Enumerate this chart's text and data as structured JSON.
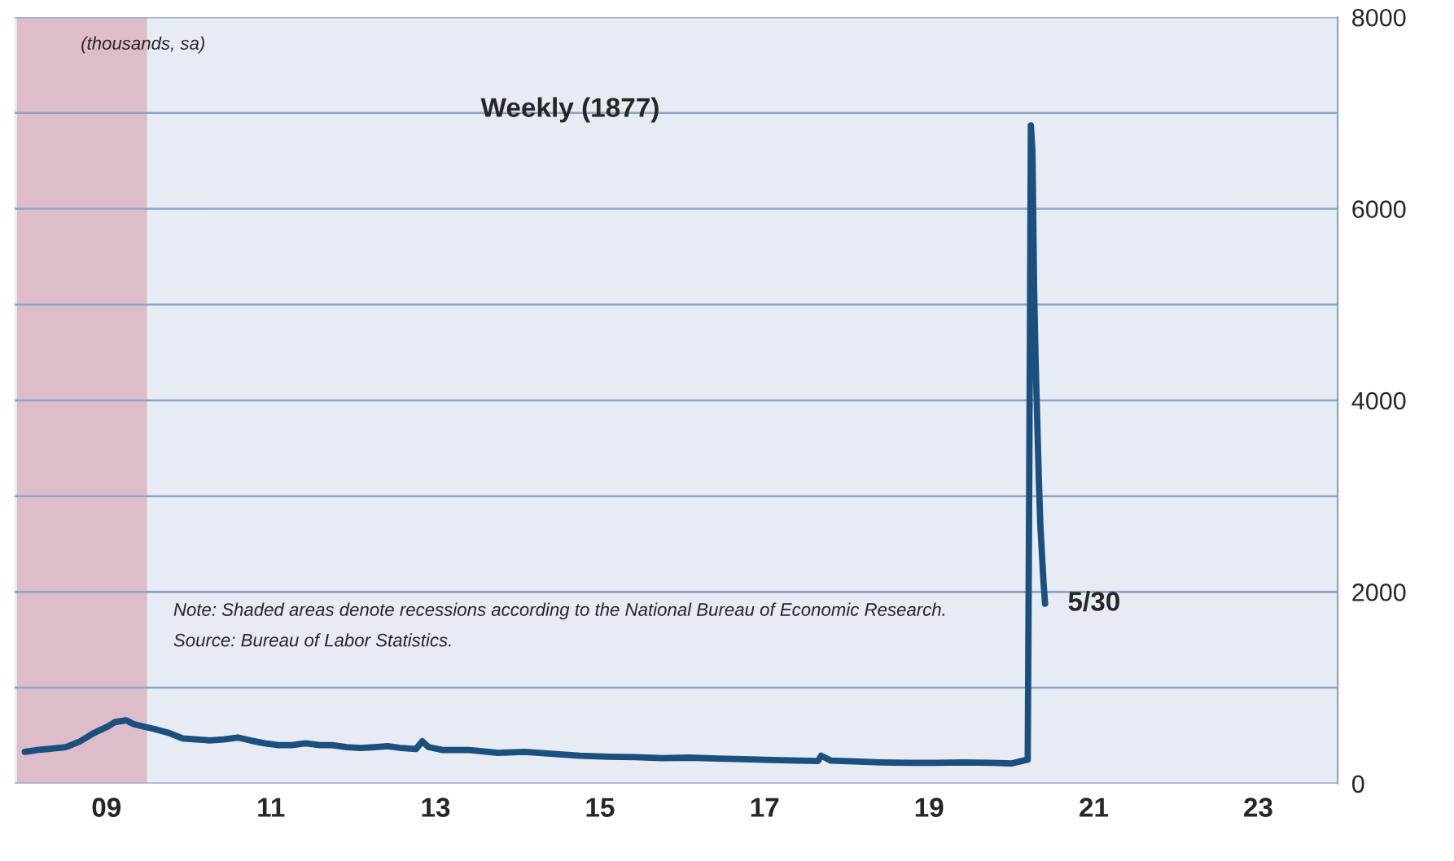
{
  "chart_data": {
    "type": "line",
    "title": "Weekly (1877)",
    "ylabel": "(thousands, sa)",
    "annotations": [
      "Note: Shaded areas denote recessions according to the National Bureau of Economic Research.",
      "Source: Bureau of Labor Statistics.",
      {
        "text": "5/30",
        "x": "2020-05-30",
        "y": 1877
      }
    ],
    "x": [
      "2008-01-05",
      "2008-03-01",
      "2008-05-03",
      "2008-07-05",
      "2008-09-06",
      "2008-10-04",
      "2008-11-01",
      "2008-12-06",
      "2009-01-03",
      "2009-02-07",
      "2009-03-28",
      "2009-05-02",
      "2009-06-06",
      "2009-08-01",
      "2009-10-03",
      "2009-12-05",
      "2010-02-06",
      "2010-04-03",
      "2010-06-05",
      "2010-08-07",
      "2010-10-02",
      "2010-12-04",
      "2011-02-05",
      "2011-04-02",
      "2011-06-04",
      "2011-08-06",
      "2011-10-01",
      "2011-12-03",
      "2012-02-04",
      "2012-04-07",
      "2012-06-02",
      "2012-08-04",
      "2012-10-06",
      "2012-11-03",
      "2012-12-01",
      "2013-02-02",
      "2013-06-01",
      "2013-10-05",
      "2014-02-01",
      "2014-06-07",
      "2014-10-04",
      "2015-02-07",
      "2015-06-06",
      "2015-10-03",
      "2016-02-06",
      "2016-06-04",
      "2016-10-01",
      "2017-02-04",
      "2017-06-03",
      "2017-08-26",
      "2017-09-09",
      "2017-10-21",
      "2018-02-03",
      "2018-06-02",
      "2018-10-06",
      "2019-02-02",
      "2019-06-01",
      "2019-10-05",
      "2020-01-04",
      "2020-03-14",
      "2020-03-21",
      "2020-03-28",
      "2020-04-04",
      "2020-04-11",
      "2020-04-18",
      "2020-04-25",
      "2020-05-02",
      "2020-05-09",
      "2020-05-16",
      "2020-05-23",
      "2020-05-30"
    ],
    "series": [
      {
        "color": "#1b4f7e",
        "values": [
          330,
          350,
          365,
          380,
          440,
          480,
          520,
          560,
          590,
          640,
          660,
          620,
          600,
          570,
          530,
          470,
          460,
          450,
          460,
          480,
          450,
          420,
          400,
          400,
          420,
          400,
          400,
          380,
          370,
          380,
          390,
          370,
          360,
          440,
          380,
          350,
          350,
          320,
          330,
          310,
          290,
          280,
          275,
          265,
          270,
          260,
          255,
          245,
          240,
          235,
          290,
          240,
          230,
          220,
          215,
          215,
          220,
          215,
          210,
          250,
          3300,
          6870,
          6600,
          5200,
          4400,
          3800,
          3200,
          2700,
          2400,
          2100,
          1877
        ]
      }
    ],
    "bands": [
      {
        "axis": "x",
        "from": "2007-12-01",
        "to": "2009-06-30",
        "color": "#dcb5c2"
      }
    ],
    "xlim": [
      "2007-11-20",
      "2023-12-20"
    ],
    "xticks": [
      {
        "value": "2009-01-01",
        "label": "09"
      },
      {
        "value": "2011-01-01",
        "label": "11"
      },
      {
        "value": "2013-01-01",
        "label": "13"
      },
      {
        "value": "2015-01-01",
        "label": "15"
      },
      {
        "value": "2017-01-01",
        "label": "17"
      },
      {
        "value": "2019-01-01",
        "label": "19"
      },
      {
        "value": "2021-01-01",
        "label": "21"
      },
      {
        "value": "2023-01-01",
        "label": "23"
      }
    ],
    "ylim": [
      0,
      8000
    ],
    "yticks": [
      0,
      {
        "value": 1000,
        "label": null
      },
      2000,
      {
        "value": 3000,
        "label": null
      },
      4000,
      {
        "value": 5000,
        "label": null
      },
      6000,
      {
        "value": 7000,
        "label": null
      },
      8000
    ],
    "grid": "y",
    "legend": false,
    "line_style": "solid",
    "marker": "none"
  }
}
